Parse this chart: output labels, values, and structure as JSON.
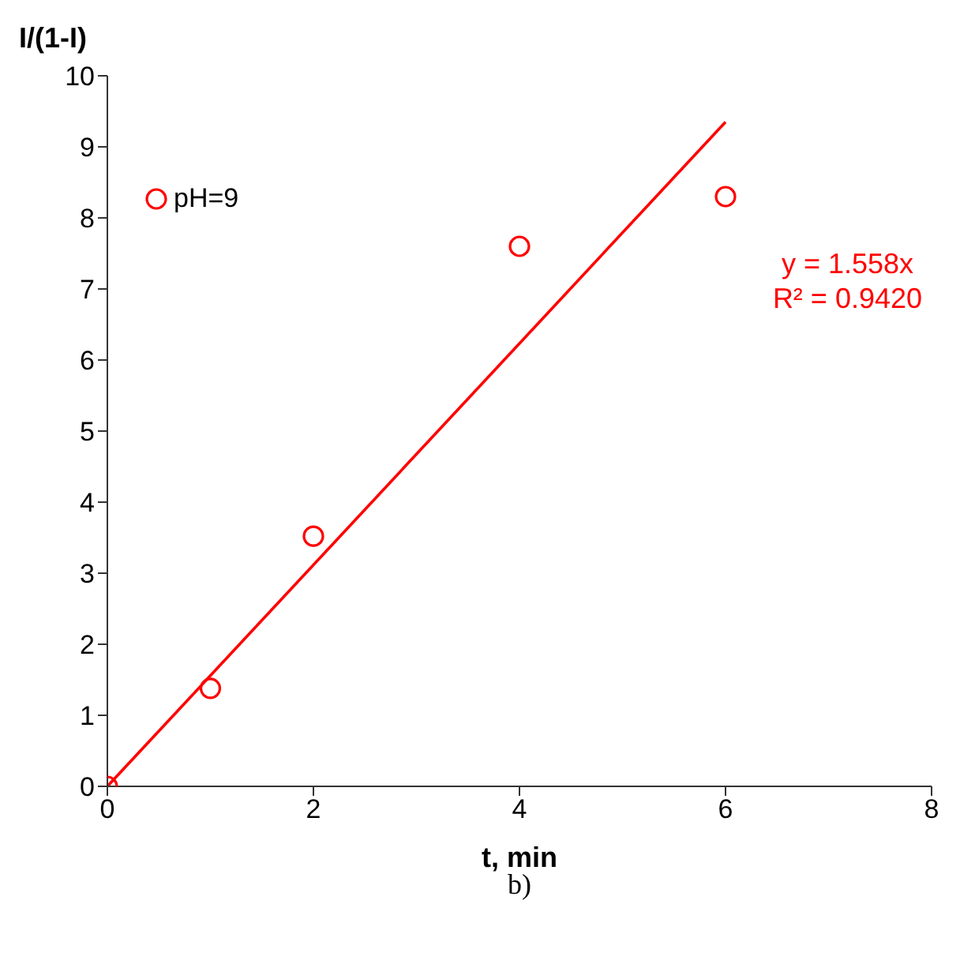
{
  "chart_data": {
    "type": "scatter",
    "ylabel": "I/(1-I)",
    "xlabel": "t, min",
    "x": [
      0,
      1,
      2,
      4,
      6
    ],
    "series": [
      {
        "name": "pH=9",
        "color": "#ff0000",
        "marker": "circle",
        "values": [
          0,
          1.38,
          3.52,
          7.6,
          8.3
        ]
      },
      {
        "type": "line",
        "color": "#ff0000",
        "marker": "none",
        "x": [
          0,
          6
        ],
        "values": [
          0,
          9.35
        ]
      }
    ],
    "legend": "top left",
    "grid": false,
    "xlim": [
      0,
      8
    ],
    "xticks": [
      0,
      2,
      4,
      6,
      8
    ],
    "ylim": [
      0,
      10
    ],
    "yticks": [
      0,
      1,
      2,
      3,
      4,
      5,
      6,
      7,
      8,
      9,
      10
    ],
    "annotations": [
      "y = 1.558x",
      "R² = 0.9420",
      "b)"
    ]
  }
}
